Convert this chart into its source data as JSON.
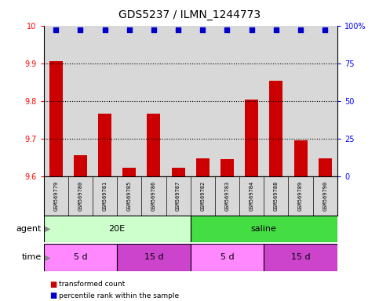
{
  "title": "GDS5237 / ILMN_1244773",
  "samples": [
    "GSM569779",
    "GSM569780",
    "GSM569781",
    "GSM569785",
    "GSM569786",
    "GSM569787",
    "GSM569782",
    "GSM569783",
    "GSM569784",
    "GSM569788",
    "GSM569789",
    "GSM569790"
  ],
  "bar_values": [
    9.905,
    9.655,
    9.765,
    9.623,
    9.765,
    9.622,
    9.648,
    9.646,
    9.803,
    9.853,
    9.695,
    9.648
  ],
  "percentile_values": [
    97,
    97,
    97,
    97,
    97,
    97,
    97,
    97,
    97,
    97,
    97,
    97
  ],
  "bar_color": "#cc0000",
  "percentile_color": "#0000cc",
  "ylim_left": [
    9.6,
    10.0
  ],
  "ylim_right": [
    0,
    100
  ],
  "yticks_left": [
    9.6,
    9.7,
    9.8,
    9.9,
    10.0
  ],
  "ytick_labels_left": [
    "9.6",
    "9.7",
    "9.8",
    "9.9",
    "10"
  ],
  "yticks_right": [
    0,
    25,
    50,
    75,
    100
  ],
  "ytick_labels_right": [
    "0",
    "25",
    "50",
    "75",
    "100%"
  ],
  "agent_groups": [
    {
      "label": "20E",
      "start": 0,
      "end": 6,
      "color": "#ccffcc"
    },
    {
      "label": "saline",
      "start": 6,
      "end": 12,
      "color": "#44dd44"
    }
  ],
  "time_groups": [
    {
      "label": "5 d",
      "start": 0,
      "end": 3,
      "color": "#ff88ff"
    },
    {
      "label": "15 d",
      "start": 3,
      "end": 6,
      "color": "#cc44cc"
    },
    {
      "label": "5 d",
      "start": 6,
      "end": 9,
      "color": "#ff88ff"
    },
    {
      "label": "15 d",
      "start": 9,
      "end": 12,
      "color": "#cc44cc"
    }
  ],
  "legend_items": [
    {
      "label": "transformed count",
      "color": "#cc0000"
    },
    {
      "label": "percentile rank within the sample",
      "color": "#0000cc"
    }
  ],
  "bar_width": 0.55,
  "plot_bg_color": "#d8d8d8",
  "title_fontsize": 10,
  "tick_fontsize": 7,
  "bar_fontsize": 5,
  "label_fontsize": 8
}
